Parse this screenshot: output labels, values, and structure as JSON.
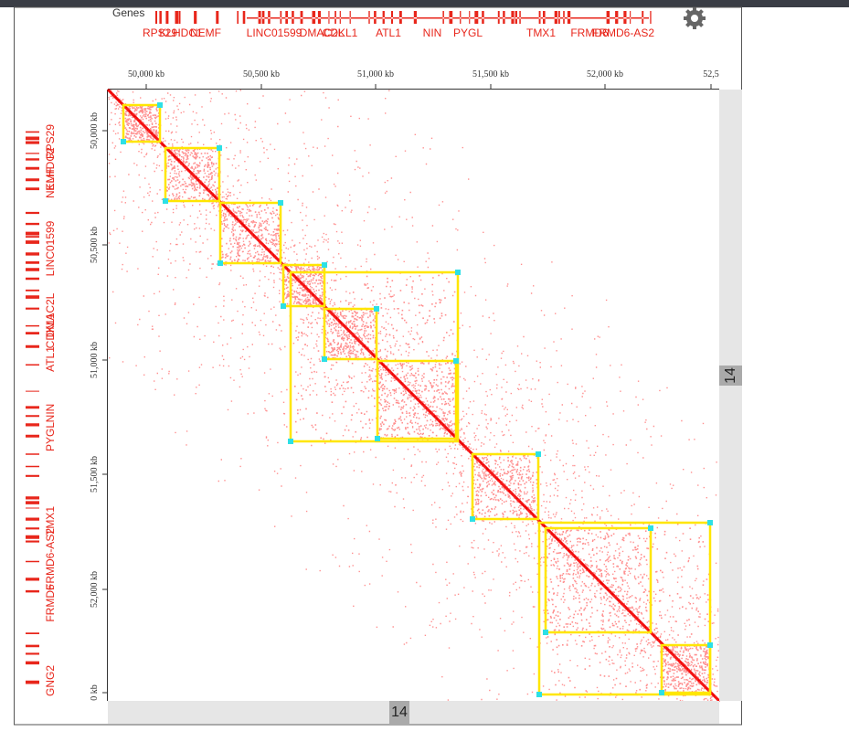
{
  "header": {
    "track_label": "Genes"
  },
  "top_genes": [
    "RPS29",
    "KLHDC1",
    "NEMF",
    "LINC01599",
    "DMAC2L",
    "CDKL1",
    "ATL1",
    "NIN",
    "PYGL",
    "TMX1",
    "FRMD6",
    "FRMD6-AS2"
  ],
  "left_genes": [
    "RPS29",
    "KLHDC2",
    "NEMF",
    "LINC01599",
    "DMAC2L",
    "CDKL1",
    "ATL1",
    "NIN",
    "PYGL",
    "TMX1",
    "FRMD6-AS2",
    "FRMD6",
    "GNG2"
  ],
  "axes": {
    "x_ticks": [
      "50,000 kb",
      "50,500 kb",
      "51,000 kb",
      "51,500 kb",
      "52,000 kb",
      "52,5"
    ],
    "y_ticks": [
      "50,000 kb",
      "50,500 kb",
      "51,000 kb",
      "51,500 kb",
      "52,000 kb",
      "0 kb"
    ]
  },
  "zoom": {
    "right": "14",
    "bottom": "14"
  }
}
